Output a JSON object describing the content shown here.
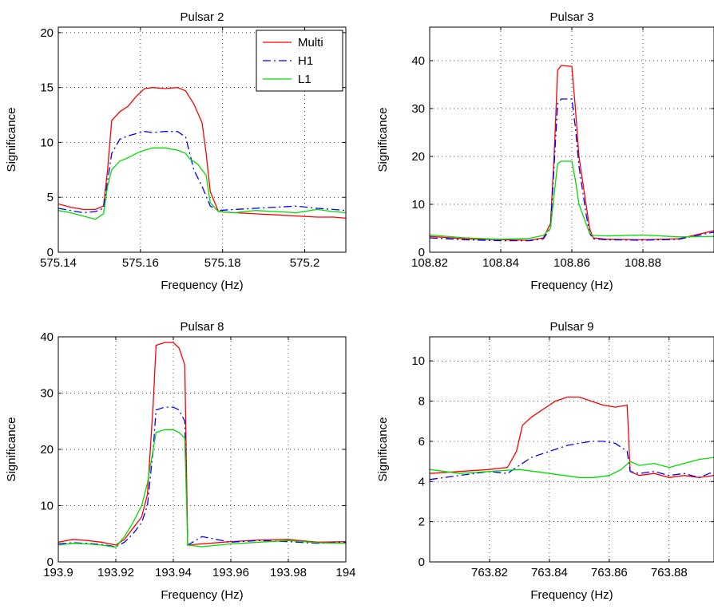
{
  "chart_data": [
    {
      "type": "line",
      "title": "Pulsar 2",
      "xlabel": "Frequency (Hz)",
      "ylabel": "Significance",
      "xlim": [
        575.14,
        575.21
      ],
      "ylim": [
        0,
        20.5
      ],
      "xticks": [
        575.14,
        575.16,
        575.18,
        575.2
      ],
      "xtick_labels": [
        "575.14",
        "575.16",
        "575.18",
        "575.2"
      ],
      "yticks": [
        0,
        5,
        10,
        15,
        20
      ],
      "ytick_labels": [
        "0",
        "5",
        "10",
        "15",
        "20"
      ],
      "grid": true,
      "legend": "top-right",
      "series": [
        {
          "name": "Multi",
          "color": "#ff0000",
          "style": "solid",
          "x": [
            575.14,
            575.143,
            575.146,
            575.149,
            575.151,
            575.152,
            575.153,
            575.155,
            575.157,
            575.159,
            575.161,
            575.163,
            575.166,
            575.169,
            575.171,
            575.173,
            575.175,
            575.176,
            575.177,
            575.179,
            575.183,
            575.188,
            575.193,
            575.198,
            575.203,
            575.207,
            575.21
          ],
          "y": [
            4.4,
            4.1,
            3.9,
            3.9,
            4.2,
            7.5,
            12.0,
            12.8,
            13.3,
            14.2,
            14.9,
            15.0,
            14.9,
            15.0,
            14.7,
            13.5,
            11.8,
            9.0,
            5.5,
            3.7,
            3.6,
            3.5,
            3.4,
            3.3,
            3.2,
            3.2,
            3.1
          ]
        },
        {
          "name": "H1",
          "color": "#0000ff",
          "style": "dashdot",
          "x": [
            575.14,
            575.143,
            575.146,
            575.149,
            575.151,
            575.152,
            575.153,
            575.155,
            575.157,
            575.159,
            575.161,
            575.163,
            575.166,
            575.169,
            575.171,
            575.172,
            575.173,
            575.175,
            575.177,
            575.179,
            575.183,
            575.188,
            575.193,
            575.198,
            575.203,
            575.207,
            575.21
          ],
          "y": [
            4.0,
            3.8,
            3.6,
            3.7,
            4.0,
            6.5,
            9.0,
            10.3,
            10.6,
            10.8,
            11.0,
            10.9,
            11.0,
            11.0,
            10.5,
            9.0,
            7.5,
            6.0,
            4.2,
            3.8,
            3.9,
            4.0,
            4.1,
            4.2,
            4.0,
            3.9,
            3.8
          ]
        },
        {
          "name": "L1",
          "color": "#00dd00",
          "style": "solid",
          "x": [
            575.14,
            575.143,
            575.146,
            575.149,
            575.151,
            575.152,
            575.153,
            575.155,
            575.157,
            575.159,
            575.161,
            575.163,
            575.166,
            575.169,
            575.171,
            575.172,
            575.174,
            575.176,
            575.177,
            575.179,
            575.183,
            575.188,
            575.193,
            575.198,
            575.203,
            575.207,
            575.21
          ],
          "y": [
            3.8,
            3.6,
            3.3,
            3.0,
            3.5,
            6.0,
            7.5,
            8.3,
            8.6,
            9.0,
            9.3,
            9.5,
            9.5,
            9.3,
            9.0,
            8.5,
            8.0,
            7.0,
            4.5,
            3.7,
            3.6,
            3.8,
            3.7,
            3.6,
            3.9,
            3.7,
            3.6
          ]
        }
      ]
    },
    {
      "type": "line",
      "title": "Pulsar 3",
      "xlabel": "Frequency (Hz)",
      "ylabel": "Significance",
      "xlim": [
        108.82,
        108.9
      ],
      "ylim": [
        0,
        47
      ],
      "xticks": [
        108.82,
        108.84,
        108.86,
        108.88
      ],
      "xtick_labels": [
        "108.82",
        "108.84",
        "108.86",
        "108.88"
      ],
      "yticks": [
        0,
        10,
        20,
        30,
        40
      ],
      "ytick_labels": [
        "0",
        "10",
        "20",
        "30",
        "40"
      ],
      "grid": true,
      "series": [
        {
          "name": "Multi",
          "color": "#ff0000",
          "style": "solid",
          "x": [
            108.82,
            108.83,
            108.84,
            108.848,
            108.852,
            108.854,
            108.855,
            108.856,
            108.857,
            108.86,
            108.861,
            108.862,
            108.864,
            108.865,
            108.866,
            108.87,
            108.88,
            108.89,
            108.9
          ],
          "y": [
            3.3,
            2.8,
            2.6,
            2.5,
            3.0,
            6.0,
            20.0,
            38.0,
            39.0,
            38.8,
            30.0,
            20.0,
            10.0,
            5.0,
            3.0,
            2.7,
            2.6,
            2.8,
            4.5
          ]
        },
        {
          "name": "H1",
          "color": "#0000ff",
          "style": "dashdot",
          "x": [
            108.82,
            108.83,
            108.84,
            108.848,
            108.852,
            108.854,
            108.855,
            108.856,
            108.857,
            108.86,
            108.861,
            108.862,
            108.864,
            108.865,
            108.866,
            108.87,
            108.88,
            108.89,
            108.9
          ],
          "y": [
            3.0,
            2.6,
            2.4,
            2.4,
            2.8,
            5.0,
            18.0,
            31.0,
            32.0,
            32.0,
            26.0,
            18.0,
            8.0,
            4.0,
            2.8,
            2.6,
            2.5,
            2.7,
            4.2
          ]
        },
        {
          "name": "L1",
          "color": "#00dd00",
          "style": "solid",
          "x": [
            108.82,
            108.83,
            108.84,
            108.848,
            108.852,
            108.854,
            108.855,
            108.856,
            108.857,
            108.86,
            108.861,
            108.862,
            108.864,
            108.865,
            108.866,
            108.87,
            108.88,
            108.89,
            108.9
          ],
          "y": [
            3.6,
            3.0,
            2.7,
            2.9,
            3.5,
            5.0,
            12.0,
            18.5,
            19.0,
            19.0,
            15.0,
            10.0,
            6.0,
            4.0,
            3.5,
            3.4,
            3.6,
            3.2,
            3.3
          ]
        }
      ]
    },
    {
      "type": "line",
      "title": "Pulsar 8",
      "xlabel": "Frequency (Hz)",
      "ylabel": "Significance",
      "xlim": [
        193.9,
        194.0
      ],
      "ylim": [
        0,
        40
      ],
      "xticks": [
        193.9,
        193.92,
        193.94,
        193.96,
        193.98,
        194.0
      ],
      "xtick_labels": [
        "193.9",
        "193.92",
        "193.94",
        "193.96",
        "193.98",
        "194"
      ],
      "yticks": [
        0,
        10,
        20,
        30,
        40
      ],
      "ytick_labels": [
        "0",
        "10",
        "20",
        "30",
        "40"
      ],
      "grid": true,
      "series": [
        {
          "name": "Multi",
          "color": "#ff0000",
          "style": "solid",
          "x": [
            193.9,
            193.905,
            193.91,
            193.915,
            193.92,
            193.923,
            193.926,
            193.929,
            193.931,
            193.933,
            193.934,
            193.937,
            193.94,
            193.942,
            193.944,
            193.945,
            193.95,
            193.96,
            193.97,
            193.98,
            193.99,
            194.0
          ],
          "y": [
            3.5,
            4.0,
            3.8,
            3.5,
            3.0,
            4.0,
            6.0,
            8.0,
            12.0,
            28.0,
            38.5,
            39.0,
            39.0,
            38.0,
            35.0,
            3.0,
            3.2,
            3.6,
            3.9,
            4.0,
            3.5,
            3.6
          ]
        },
        {
          "name": "H1",
          "color": "#0000ff",
          "style": "dashdot",
          "x": [
            193.9,
            193.905,
            193.91,
            193.915,
            193.92,
            193.923,
            193.926,
            193.929,
            193.931,
            193.933,
            193.934,
            193.937,
            193.94,
            193.942,
            193.944,
            193.945,
            193.95,
            193.96,
            193.97,
            193.98,
            193.99,
            194.0
          ],
          "y": [
            3.2,
            3.4,
            3.3,
            3.1,
            2.7,
            3.5,
            5.0,
            7.0,
            10.0,
            20.0,
            27.0,
            27.5,
            27.5,
            27.0,
            25.0,
            3.0,
            4.5,
            3.5,
            3.8,
            3.6,
            3.3,
            3.5
          ]
        },
        {
          "name": "L1",
          "color": "#00dd00",
          "style": "solid",
          "x": [
            193.9,
            193.905,
            193.91,
            193.915,
            193.92,
            193.923,
            193.926,
            193.929,
            193.931,
            193.933,
            193.934,
            193.937,
            193.94,
            193.942,
            193.944,
            193.945,
            193.95,
            193.96,
            193.97,
            193.98,
            193.99,
            194.0
          ],
          "y": [
            3.0,
            3.3,
            3.2,
            3.0,
            2.6,
            4.5,
            7.0,
            10.0,
            14.0,
            20.0,
            23.0,
            23.5,
            23.5,
            23.0,
            22.0,
            3.0,
            2.7,
            3.2,
            3.5,
            3.8,
            3.4,
            3.3
          ]
        }
      ]
    },
    {
      "type": "line",
      "title": "Pulsar 9",
      "xlabel": "Frequency (Hz)",
      "ylabel": "Significance",
      "xlim": [
        763.8,
        763.895
      ],
      "ylim": [
        0,
        11.2
      ],
      "xticks": [
        763.82,
        763.84,
        763.86,
        763.88
      ],
      "xtick_labels": [
        "763.82",
        "763.84",
        "763.86",
        "763.88"
      ],
      "yticks": [
        0,
        2,
        4,
        6,
        8,
        10
      ],
      "ytick_labels": [
        "0",
        "2",
        "4",
        "6",
        "8",
        "10"
      ],
      "grid": true,
      "series": [
        {
          "name": "Multi",
          "color": "#ff0000",
          "style": "solid",
          "x": [
            763.8,
            763.81,
            763.82,
            763.826,
            763.829,
            763.831,
            763.834,
            763.838,
            763.842,
            763.846,
            763.85,
            763.854,
            763.858,
            763.862,
            763.866,
            763.867,
            763.87,
            763.875,
            763.88,
            763.885,
            763.89,
            763.895
          ],
          "y": [
            4.4,
            4.5,
            4.6,
            4.7,
            5.5,
            6.8,
            7.2,
            7.6,
            8.0,
            8.2,
            8.2,
            8.0,
            7.8,
            7.7,
            7.8,
            4.5,
            4.3,
            4.4,
            4.2,
            4.3,
            4.2,
            4.3
          ]
        },
        {
          "name": "H1",
          "color": "#0000ff",
          "style": "dashdot",
          "x": [
            763.8,
            763.81,
            763.82,
            763.826,
            763.83,
            763.834,
            763.838,
            763.842,
            763.846,
            763.85,
            763.854,
            763.858,
            763.862,
            763.866,
            763.867,
            763.87,
            763.875,
            763.88,
            763.885,
            763.89,
            763.895
          ],
          "y": [
            4.1,
            4.3,
            4.5,
            4.4,
            4.8,
            5.2,
            5.4,
            5.6,
            5.8,
            5.9,
            6.0,
            6.0,
            5.9,
            5.5,
            4.5,
            4.4,
            4.5,
            4.3,
            4.4,
            4.2,
            4.5
          ]
        },
        {
          "name": "L1",
          "color": "#00dd00",
          "style": "solid",
          "x": [
            763.8,
            763.81,
            763.82,
            763.83,
            763.835,
            763.84,
            763.845,
            763.85,
            763.855,
            763.86,
            763.864,
            763.867,
            763.87,
            763.875,
            763.88,
            763.885,
            763.89,
            763.895
          ],
          "y": [
            4.6,
            4.4,
            4.5,
            4.6,
            4.5,
            4.4,
            4.3,
            4.2,
            4.2,
            4.3,
            4.6,
            5.0,
            4.8,
            4.9,
            4.7,
            4.9,
            5.1,
            5.2
          ]
        }
      ]
    }
  ]
}
